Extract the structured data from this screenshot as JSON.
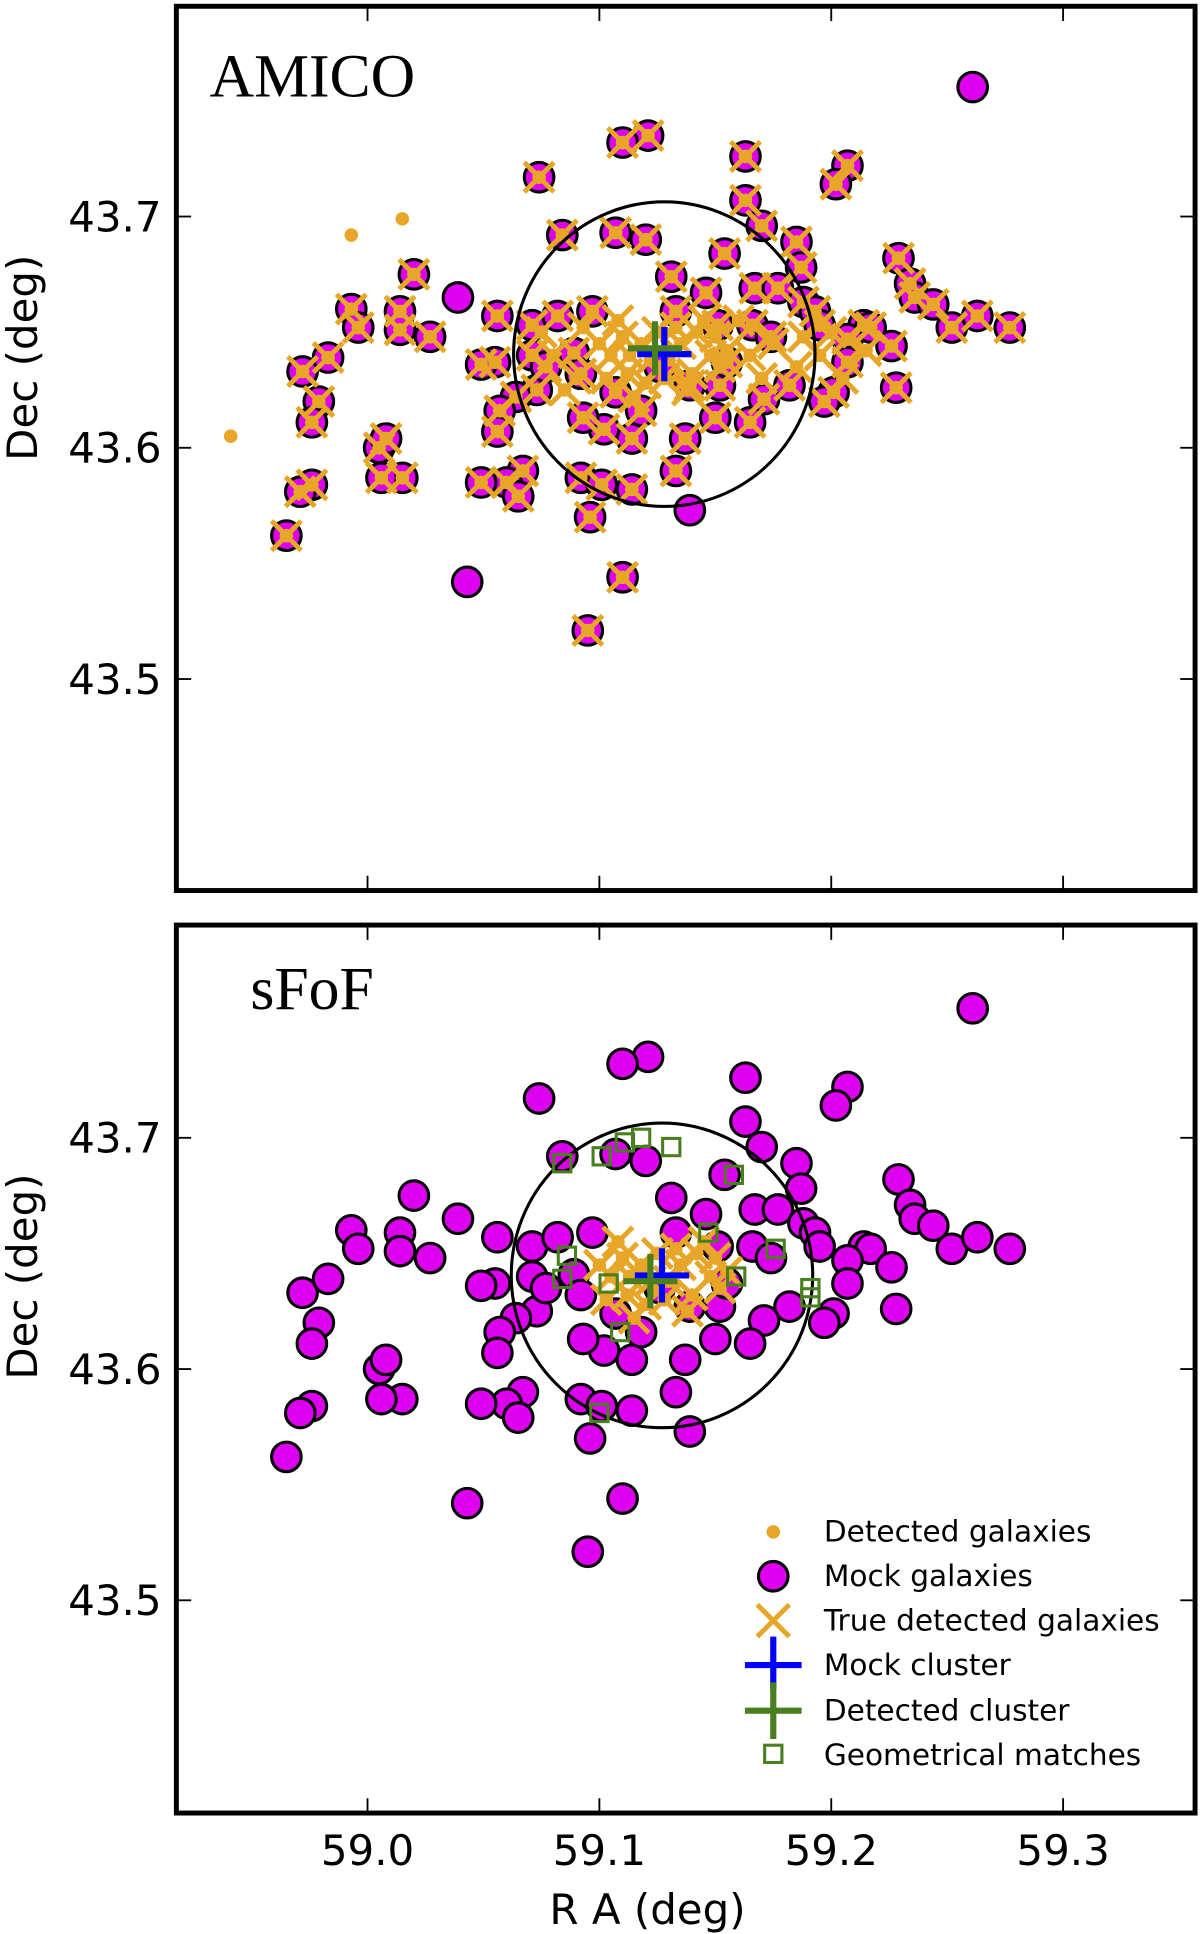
{
  "chart_data": {
    "type": "scatter",
    "xlabel": "R A  (deg)",
    "ylabel": "Dec  (deg)",
    "xlim": [
      58.918,
      59.357
    ],
    "ylim": [
      43.408,
      43.791
    ],
    "xticks": [
      "59.0",
      "59.1",
      "59.2",
      "59.3"
    ],
    "xtick_values": [
      59.0,
      59.1,
      59.2,
      59.3
    ],
    "yticks": [
      "43.5",
      "43.6",
      "43.7"
    ],
    "ytick_values": [
      43.5,
      43.6,
      43.7
    ],
    "grid": false,
    "legend_position": "bottom-right (lower panel)",
    "legend": {
      "detected": "Detected galaxies",
      "mock": "Mock galaxies",
      "true_detected": "True detected galaxies",
      "mock_cluster": "Mock cluster",
      "detected_cluster": "Detected cluster",
      "geo_matches": "Geometrical matches"
    },
    "colors": {
      "detected": "#e8a628",
      "mock": "#dd00ee",
      "true_detected": "#e8a628",
      "mock_cluster": "#0000ff",
      "detected_cluster": "#4a7f1f",
      "geo_matches": "#4a7f1f"
    },
    "aperture_radius_deg": 0.065,
    "mock_galaxies": [
      [
        59.261,
        43.756
      ],
      [
        59.121,
        43.735
      ],
      [
        59.11,
        43.732
      ],
      [
        59.074,
        43.717
      ],
      [
        59.163,
        43.726
      ],
      [
        59.207,
        43.722
      ],
      [
        59.202,
        43.714
      ],
      [
        59.084,
        43.692
      ],
      [
        59.107,
        43.693
      ],
      [
        59.12,
        43.69
      ],
      [
        59.163,
        43.707
      ],
      [
        59.17,
        43.696
      ],
      [
        59.185,
        43.689
      ],
      [
        59.154,
        43.684
      ],
      [
        59.229,
        43.682
      ],
      [
        59.02,
        43.675
      ],
      [
        58.993,
        43.66
      ],
      [
        59.014,
        43.659
      ],
      [
        59.039,
        43.665
      ],
      [
        58.996,
        43.652
      ],
      [
        59.014,
        43.651
      ],
      [
        59.027,
        43.648
      ],
      [
        59.056,
        43.657
      ],
      [
        59.055,
        43.637
      ],
      [
        59.071,
        43.653
      ],
      [
        59.071,
        43.64
      ],
      [
        59.097,
        43.659
      ],
      [
        59.131,
        43.674
      ],
      [
        59.133,
        43.659
      ],
      [
        59.146,
        43.667
      ],
      [
        59.167,
        43.669
      ],
      [
        59.177,
        43.669
      ],
      [
        59.187,
        43.678
      ],
      [
        59.188,
        43.663
      ],
      [
        59.193,
        43.659
      ],
      [
        59.195,
        43.653
      ],
      [
        59.214,
        43.653
      ],
      [
        59.217,
        43.652
      ],
      [
        59.234,
        43.671
      ],
      [
        59.236,
        43.665
      ],
      [
        59.244,
        43.662
      ],
      [
        59.252,
        43.652
      ],
      [
        59.277,
        43.652
      ],
      [
        59.263,
        43.657
      ],
      [
        59.226,
        43.644
      ],
      [
        59.228,
        43.626
      ],
      [
        59.207,
        43.647
      ],
      [
        59.207,
        43.637
      ],
      [
        59.201,
        43.624
      ],
      [
        59.197,
        43.62
      ],
      [
        59.182,
        43.627
      ],
      [
        59.171,
        43.621
      ],
      [
        59.165,
        43.611
      ],
      [
        59.152,
        43.627
      ],
      [
        59.15,
        43.613
      ],
      [
        59.139,
        43.627
      ],
      [
        59.137,
        43.604
      ],
      [
        59.133,
        43.59
      ],
      [
        59.114,
        43.604
      ],
      [
        59.102,
        43.608
      ],
      [
        59.093,
        43.613
      ],
      [
        59.073,
        43.625
      ],
      [
        59.077,
        43.635
      ],
      [
        59.064,
        43.622
      ],
      [
        59.057,
        43.616
      ],
      [
        59.049,
        43.636
      ],
      [
        59.089,
        43.641
      ],
      [
        59.092,
        43.632
      ],
      [
        59.082,
        43.657
      ],
      [
        59.107,
        43.624
      ],
      [
        59.118,
        43.616
      ],
      [
        59.126,
        43.635
      ],
      [
        59.155,
        43.637
      ],
      [
        59.166,
        43.653
      ],
      [
        59.174,
        43.648
      ],
      [
        59.151,
        43.653
      ],
      [
        58.972,
        43.633
      ],
      [
        58.983,
        43.639
      ],
      [
        58.979,
        43.62
      ],
      [
        58.976,
        43.611
      ],
      [
        59.005,
        43.6
      ],
      [
        59.008,
        43.604
      ],
      [
        59.015,
        43.587
      ],
      [
        59.006,
        43.587
      ],
      [
        58.976,
        43.584
      ],
      [
        58.971,
        43.581
      ],
      [
        58.965,
        43.562
      ],
      [
        59.056,
        43.607
      ],
      [
        59.067,
        43.59
      ],
      [
        59.06,
        43.585
      ],
      [
        59.065,
        43.579
      ],
      [
        59.049,
        43.585
      ],
      [
        59.092,
        43.587
      ],
      [
        59.096,
        43.57
      ],
      [
        59.101,
        43.584
      ],
      [
        59.114,
        43.582
      ],
      [
        59.139,
        43.573
      ],
      [
        59.043,
        43.542
      ],
      [
        59.095,
        43.521
      ],
      [
        59.11,
        43.544
      ]
    ],
    "core_detected": [
      [
        59.105,
        43.64
      ],
      [
        59.11,
        43.648
      ],
      [
        59.112,
        43.632
      ],
      [
        59.118,
        43.645
      ],
      [
        59.12,
        43.628
      ],
      [
        59.125,
        43.65
      ],
      [
        59.13,
        43.638
      ],
      [
        59.135,
        43.645
      ],
      [
        59.14,
        43.632
      ],
      [
        59.142,
        43.65
      ],
      [
        59.148,
        43.64
      ],
      [
        59.152,
        43.635
      ],
      [
        59.15,
        43.648
      ],
      [
        59.1,
        43.645
      ],
      [
        59.103,
        43.63
      ],
      [
        59.115,
        43.622
      ],
      [
        59.108,
        43.655
      ],
      [
        59.138,
        43.625
      ],
      [
        59.145,
        43.655
      ],
      [
        59.128,
        43.63
      ],
      [
        59.155,
        43.642
      ],
      [
        59.122,
        43.638
      ],
      [
        59.133,
        43.652
      ],
      [
        59.113,
        43.64
      ]
    ],
    "panels": [
      {
        "title": "AMICO",
        "show_xticklabels": false,
        "mock_cluster": [
          59.128,
          43.6405
        ],
        "detected_cluster": [
          59.124,
          43.643
        ],
        "true_detected_mock_idx": [
          1,
          2,
          3,
          4,
          5,
          6,
          7,
          8,
          9,
          10,
          11,
          12,
          13,
          14,
          15,
          16,
          17,
          19,
          20,
          21,
          22,
          23,
          24,
          25,
          26,
          27,
          28,
          29,
          30,
          31,
          32,
          33,
          34,
          35,
          36,
          37,
          38,
          39,
          40,
          41,
          42,
          43,
          44,
          45,
          46,
          47,
          48,
          49,
          50,
          51,
          52,
          53,
          54,
          55,
          56,
          57,
          58,
          59,
          60,
          61,
          62,
          63,
          64,
          65,
          66,
          67,
          68,
          69,
          70,
          71,
          72,
          73,
          74,
          75,
          76,
          77,
          78,
          79,
          80,
          81,
          82,
          83,
          84,
          85,
          86,
          87,
          88,
          89,
          90,
          91,
          92,
          93,
          94,
          95,
          98,
          99
        ],
        "extra_true_detected": [
          [
            59.08,
            43.64
          ],
          [
            59.075,
            43.65
          ],
          [
            59.09,
            43.63
          ],
          [
            59.165,
            43.64
          ],
          [
            59.175,
            43.645
          ],
          [
            59.185,
            43.635
          ],
          [
            59.195,
            43.64
          ],
          [
            59.205,
            43.63
          ],
          [
            59.17,
            43.63
          ],
          [
            59.188,
            43.648
          ],
          [
            59.093,
            43.652
          ],
          [
            59.16,
            43.655
          ],
          [
            59.215,
            43.642
          ],
          [
            59.2,
            43.65
          ],
          [
            59.085,
            43.625
          ]
        ],
        "extra_detected_only": [
          [
            58.993,
            43.692
          ],
          [
            59.015,
            43.699
          ],
          [
            58.941,
            43.605
          ]
        ],
        "geometrical_matches": []
      },
      {
        "title": "sFoF",
        "show_xticklabels": true,
        "mock_cluster": [
          59.127,
          43.6405
        ],
        "detected_cluster": [
          59.122,
          43.638
        ],
        "true_detected_mock_idx": [],
        "extra_true_detected": [],
        "extra_detected_only": [],
        "geometrical_matches": [
          [
            59.084,
            43.689
          ],
          [
            59.101,
            43.692
          ],
          [
            59.111,
            43.698
          ],
          [
            59.118,
            43.7
          ],
          [
            59.131,
            43.696
          ],
          [
            59.086,
            43.649
          ],
          [
            59.084,
            43.639
          ],
          [
            59.104,
            43.637
          ],
          [
            59.109,
            43.616
          ],
          [
            59.158,
            43.684
          ],
          [
            59.147,
            43.659
          ],
          [
            59.159,
            43.64
          ],
          [
            59.176,
            43.652
          ],
          [
            59.191,
            43.635
          ],
          [
            59.191,
            43.631
          ],
          [
            59.1,
            43.581
          ]
        ]
      }
    ]
  }
}
